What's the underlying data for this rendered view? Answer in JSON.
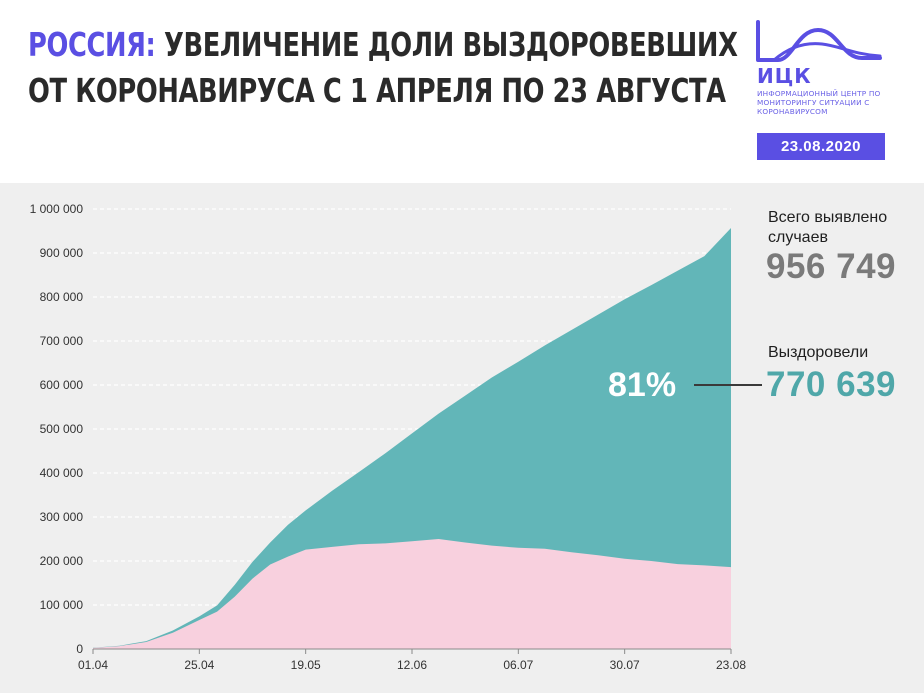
{
  "header": {
    "title_accent": "РОССИЯ:",
    "title_rest": " УВЕЛИЧЕНИЕ ДОЛИ ВЫЗДОРОВЕВШИХ",
    "title_line2": "ОТ КОРОНАВИРУСА С 1 АПРЕЛЯ ПО 23 АВГУСТА",
    "logo_text": "ИЦК",
    "logo_sub": "ИНФОРМАЦИОННЫЙ ЦЕНТР ПО МОНИТОРИНГУ СИТУАЦИИ С КОРОНАВИРУСОМ",
    "date": "23.08.2020"
  },
  "sidebar": {
    "total_label": "Всего выявлено случаев",
    "total_value": "956 749",
    "recovered_label": "Выздоровели",
    "recovered_value": "770 639",
    "percent": "81%"
  },
  "colors": {
    "accent": "#5a4fe3",
    "recovered": "#62b6b8",
    "active": "#f8d0de",
    "total_value": "#7a7a7a"
  },
  "chart_data": {
    "type": "area",
    "x_ticks": [
      "01.04",
      "25.04",
      "19.05",
      "12.06",
      "06.07",
      "30.07",
      "23.08"
    ],
    "x_tick_days": [
      0,
      24,
      48,
      72,
      96,
      120,
      144
    ],
    "ylim": [
      0,
      1000000
    ],
    "y_ticks": [
      0,
      100000,
      200000,
      300000,
      400000,
      500000,
      600000,
      700000,
      800000,
      900000,
      1000000
    ],
    "y_tick_labels": [
      "0",
      "100 000",
      "200 000",
      "300 000",
      "400 000",
      "500 000",
      "600 000",
      "700 000",
      "800 000",
      "900 000",
      "1 000 000"
    ],
    "grid": true,
    "total_cases": [
      [
        0,
        2800
      ],
      [
        6,
        7500
      ],
      [
        12,
        18000
      ],
      [
        18,
        42000
      ],
      [
        24,
        74000
      ],
      [
        28,
        99000
      ],
      [
        32,
        146000
      ],
      [
        36,
        198000
      ],
      [
        40,
        242000
      ],
      [
        44,
        282000
      ],
      [
        48,
        315000
      ],
      [
        54,
        360000
      ],
      [
        60,
        402000
      ],
      [
        66,
        445000
      ],
      [
        72,
        490000
      ],
      [
        78,
        535000
      ],
      [
        84,
        576000
      ],
      [
        90,
        617000
      ],
      [
        96,
        653000
      ],
      [
        102,
        690000
      ],
      [
        108,
        725000
      ],
      [
        114,
        760000
      ],
      [
        120,
        795000
      ],
      [
        126,
        827000
      ],
      [
        132,
        860000
      ],
      [
        138,
        893000
      ],
      [
        144,
        956749
      ]
    ],
    "active_cases": [
      [
        0,
        2600
      ],
      [
        6,
        6700
      ],
      [
        12,
        16000
      ],
      [
        18,
        37000
      ],
      [
        24,
        66000
      ],
      [
        28,
        85000
      ],
      [
        32,
        119000
      ],
      [
        36,
        160000
      ],
      [
        40,
        192000
      ],
      [
        44,
        210000
      ],
      [
        48,
        226000
      ],
      [
        54,
        232000
      ],
      [
        60,
        238000
      ],
      [
        66,
        240000
      ],
      [
        72,
        245000
      ],
      [
        78,
        250000
      ],
      [
        84,
        242000
      ],
      [
        90,
        235000
      ],
      [
        96,
        230000
      ],
      [
        102,
        228000
      ],
      [
        108,
        220000
      ],
      [
        114,
        213000
      ],
      [
        120,
        205000
      ],
      [
        126,
        200000
      ],
      [
        132,
        193000
      ],
      [
        138,
        190000
      ],
      [
        144,
        186110
      ]
    ]
  }
}
